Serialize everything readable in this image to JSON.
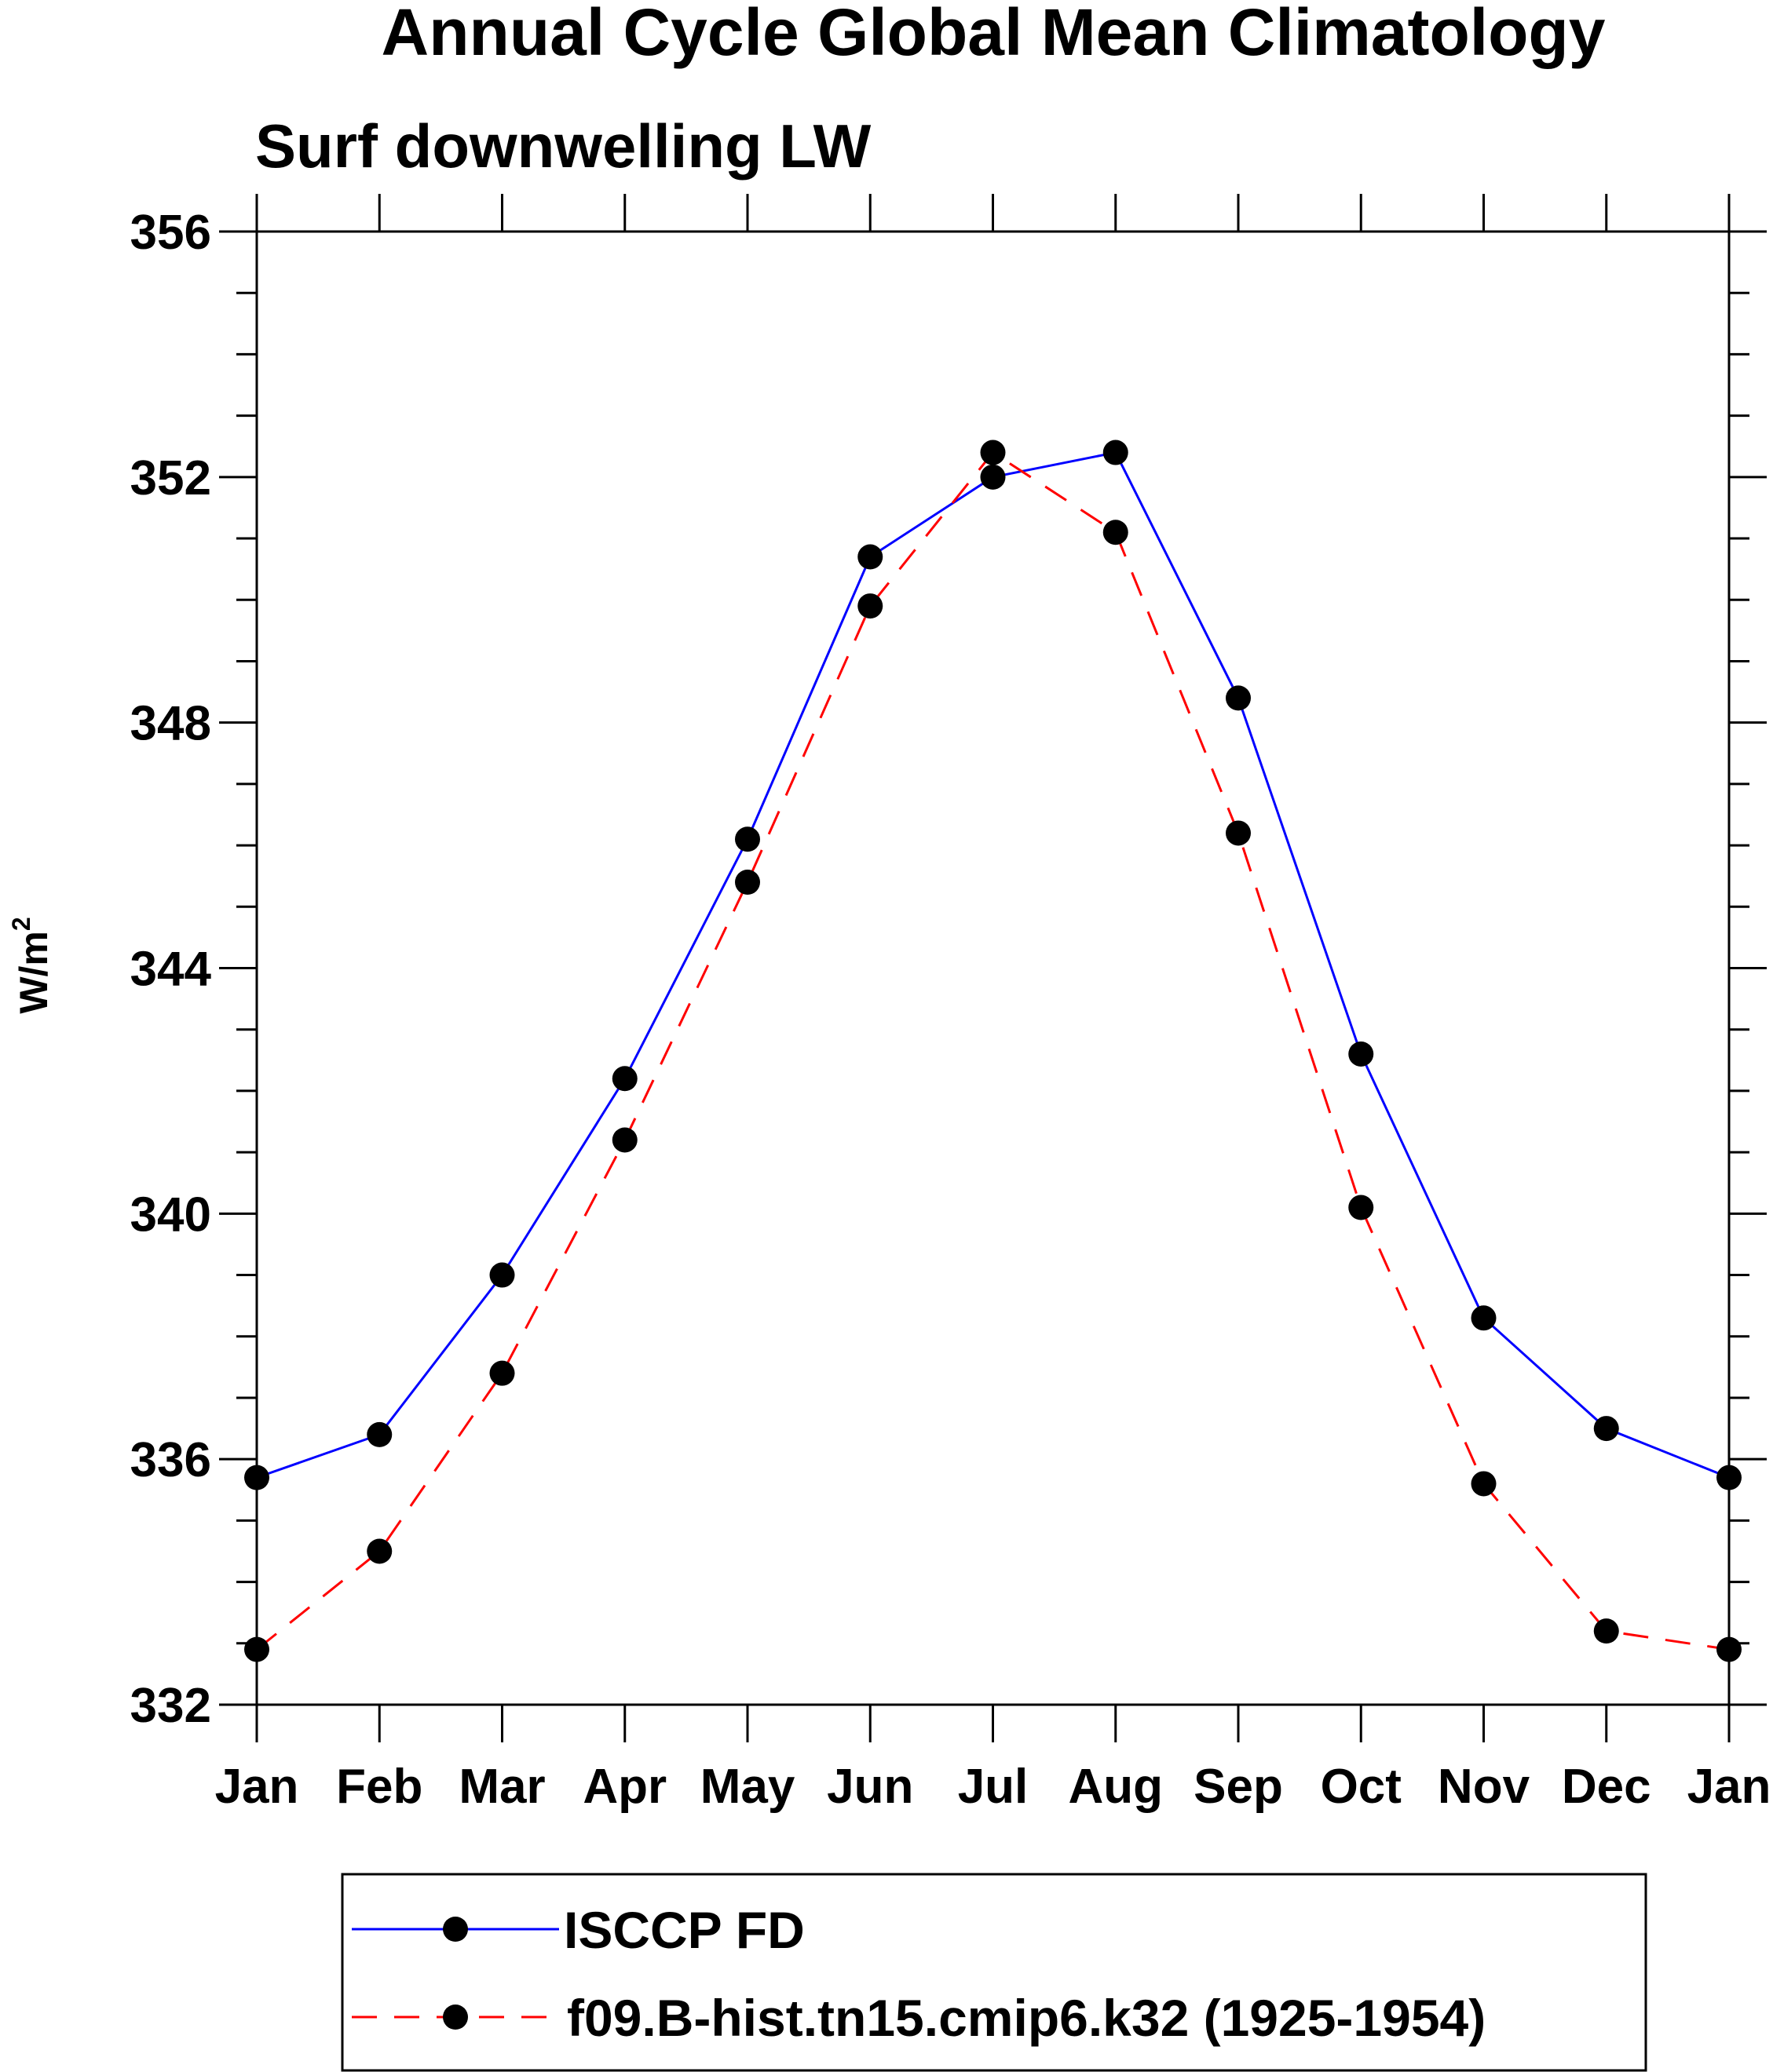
{
  "chart_data": {
    "type": "line",
    "title": "Annual Cycle Global Mean Climatology",
    "subtitle": "Surf downwelling LW",
    "xlabel": "",
    "ylabel_base": "W/m",
    "ylabel_sup": "2",
    "ylim": [
      332,
      356
    ],
    "yticks": [
      332,
      336,
      340,
      344,
      348,
      352,
      356
    ],
    "ytick_labels": [
      "332",
      "336",
      "340",
      "344",
      "348",
      "352",
      "356"
    ],
    "categories": [
      "Jan",
      "Feb",
      "Mar",
      "Apr",
      "May",
      "Jun",
      "Jul",
      "Aug",
      "Sep",
      "Oct",
      "Nov",
      "Dec",
      "Jan"
    ],
    "series": [
      {
        "name": "ISCCP FD",
        "color": "#0000ff",
        "dash": "solid",
        "values": [
          335.7,
          336.4,
          339.0,
          342.2,
          346.1,
          350.7,
          352.0,
          352.4,
          348.4,
          342.6,
          338.3,
          336.5,
          335.7
        ]
      },
      {
        "name": "f09.B-hist.tn15.cmip6.k32 (1925-1954)",
        "color": "#ff0000",
        "dash": "dashed",
        "values": [
          332.9,
          334.5,
          337.4,
          341.2,
          345.4,
          349.9,
          352.4,
          351.1,
          346.2,
          340.1,
          335.6,
          333.2,
          332.9
        ]
      }
    ],
    "legend_position": "bottom"
  }
}
